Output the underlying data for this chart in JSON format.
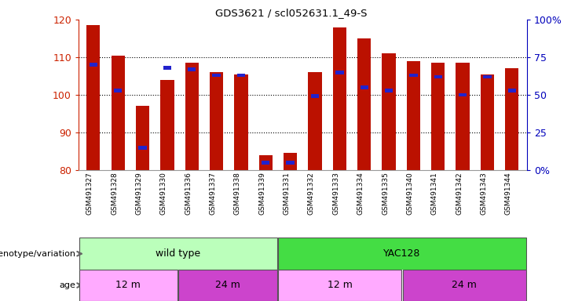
{
  "title": "GDS3621 / scl052631.1_49-S",
  "samples": [
    "GSM491327",
    "GSM491328",
    "GSM491329",
    "GSM491330",
    "GSM491336",
    "GSM491337",
    "GSM491338",
    "GSM491339",
    "GSM491331",
    "GSM491332",
    "GSM491333",
    "GSM491334",
    "GSM491335",
    "GSM491340",
    "GSM491341",
    "GSM491342",
    "GSM491343",
    "GSM491344"
  ],
  "counts": [
    118.5,
    110.5,
    97.0,
    104.0,
    108.5,
    106.0,
    105.5,
    84.0,
    84.5,
    106.0,
    118.0,
    115.0,
    111.0,
    109.0,
    108.5,
    108.5,
    105.5,
    107.0
  ],
  "percentiles": [
    70,
    53,
    15,
    68,
    67,
    63,
    63,
    5,
    5,
    49,
    65,
    55,
    53,
    63,
    62,
    50,
    62,
    53
  ],
  "bar_color": "#bb1100",
  "blue_color": "#2222cc",
  "ymin": 80,
  "ymax": 120,
  "yticks": [
    80,
    90,
    100,
    110,
    120
  ],
  "right_yticks": [
    0,
    25,
    50,
    75,
    100
  ],
  "groups": [
    {
      "label": "wild type",
      "start": 0,
      "end": 7,
      "color": "#bbffbb"
    },
    {
      "label": "YAC128",
      "start": 8,
      "end": 17,
      "color": "#44dd44"
    }
  ],
  "age_groups": [
    {
      "label": "12 m",
      "start": 0,
      "end": 3,
      "color": "#ffaaff"
    },
    {
      "label": "24 m",
      "start": 4,
      "end": 7,
      "color": "#cc44cc"
    },
    {
      "label": "12 m",
      "start": 8,
      "end": 12,
      "color": "#ffaaff"
    },
    {
      "label": "24 m",
      "start": 13,
      "end": 17,
      "color": "#cc44cc"
    }
  ],
  "tick_label_color": "#cc2200",
  "right_tick_color": "#0000bb",
  "legend_count_color": "#bb1100",
  "legend_pct_color": "#2222cc"
}
